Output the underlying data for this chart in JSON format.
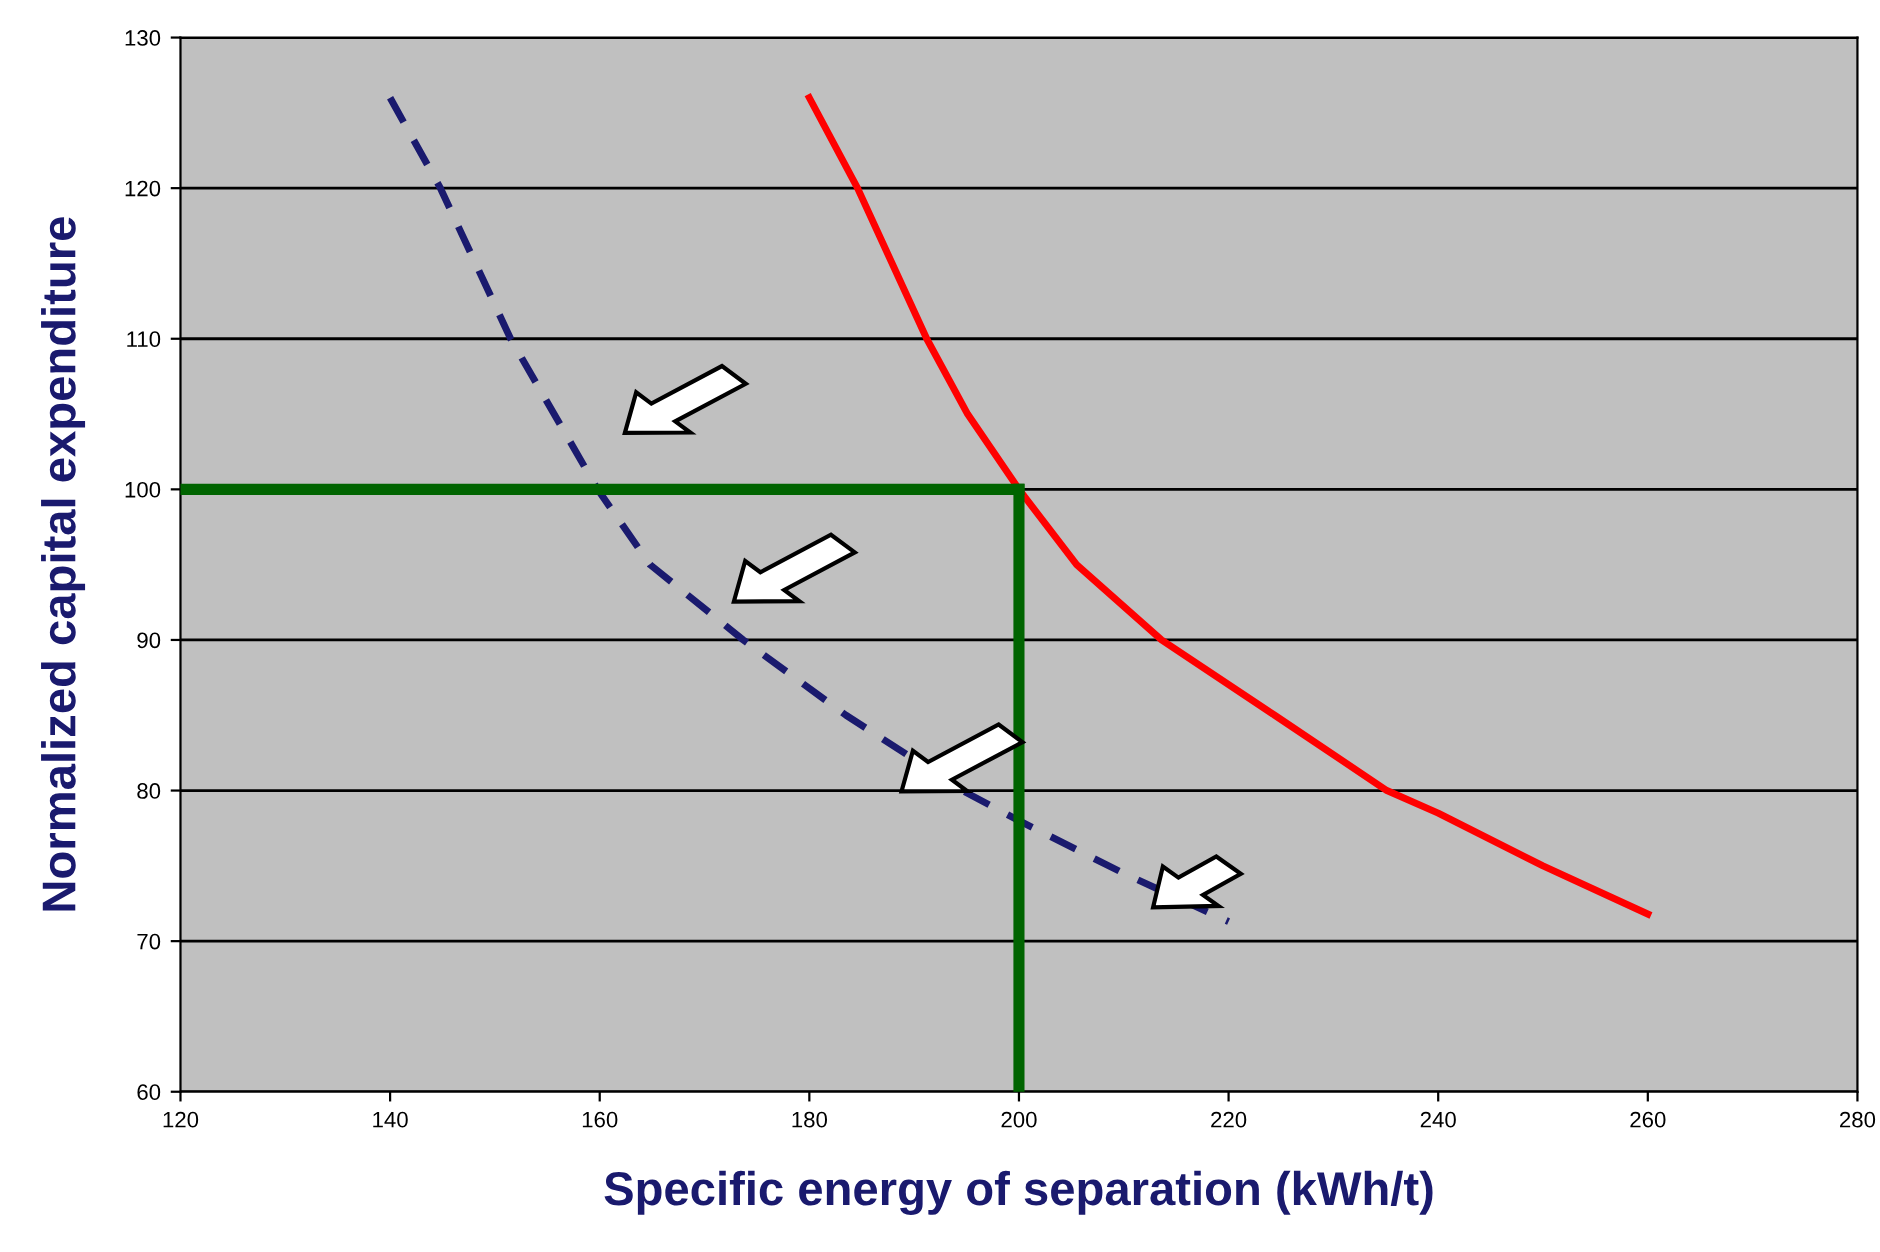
{
  "chart_data": {
    "type": "line",
    "xlabel": "Specific energy of separation (kWh/t)",
    "ylabel": "Normalized capital expenditure",
    "xlim": [
      120,
      280
    ],
    "xticks": [
      120,
      140,
      160,
      180,
      200,
      220,
      240,
      260,
      280
    ],
    "ylim": [
      60,
      130
    ],
    "yticks": [
      60,
      70,
      80,
      90,
      100,
      110,
      120,
      130
    ],
    "grid": "y",
    "legend": false,
    "series": [
      {
        "color": "#ff0000",
        "line_style": "solid",
        "x": [
          180,
          184.6,
          191.2,
          195.1,
          200,
          205.5,
          213.6,
          224.4,
          235.1,
          240,
          250,
          260
        ],
        "values": [
          126,
          120,
          110,
          105,
          100,
          95,
          90,
          85,
          80,
          78.5,
          75,
          71.8
        ]
      },
      {
        "color": "#1a1a6e",
        "line_style": "dashed",
        "x": [
          140,
          144.8,
          151.5,
          159.8,
          164.8,
          173.7,
          183.5,
          194.6,
          200,
          210,
          220
        ],
        "values": [
          126,
          120,
          110,
          100,
          95,
          90,
          85,
          80,
          78,
          74.5,
          71.3
        ]
      },
      {
        "color": "#006400",
        "line_style": "solid",
        "x": [
          120,
          200
        ],
        "values": [
          100,
          100
        ]
      },
      {
        "color": "#006400",
        "line_style": "solid",
        "x": [
          200,
          200
        ],
        "values": [
          100,
          60
        ]
      }
    ]
  }
}
